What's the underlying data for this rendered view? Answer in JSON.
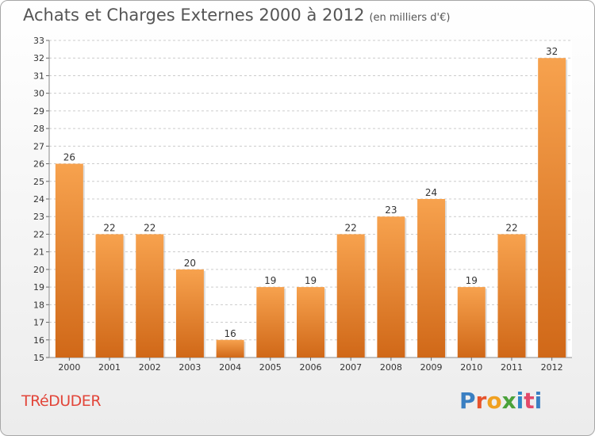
{
  "header": {
    "title": "Achats et Charges Externes 2000 à 2012",
    "subtitle": "(en milliers d'€)"
  },
  "footer": {
    "commune": "TRéDUDER",
    "logo_text": "Proxiti"
  },
  "colors": {
    "bar_light": "#f7a24e",
    "bar_dark": "#d06818",
    "grid": "#cccccc",
    "axis_text": "#333333",
    "commune_text": "#e2463a"
  },
  "chart_data": {
    "type": "bar",
    "title": "Achats et Charges Externes 2000 à 2012",
    "subtitle": "(en milliers d'€)",
    "categories": [
      "2000",
      "2001",
      "2002",
      "2003",
      "2004",
      "2005",
      "2006",
      "2007",
      "2008",
      "2009",
      "2010",
      "2011",
      "2012"
    ],
    "values": [
      26,
      22,
      22,
      20,
      16,
      19,
      19,
      22,
      23,
      24,
      19,
      22,
      32
    ],
    "ylim": [
      15,
      33
    ],
    "yticks": [
      15,
      16,
      17,
      18,
      19,
      20,
      21,
      22,
      23,
      24,
      25,
      26,
      27,
      28,
      29,
      30,
      31,
      32,
      33
    ],
    "grid": true,
    "data_labels": true,
    "xlabel": "",
    "ylabel": ""
  }
}
